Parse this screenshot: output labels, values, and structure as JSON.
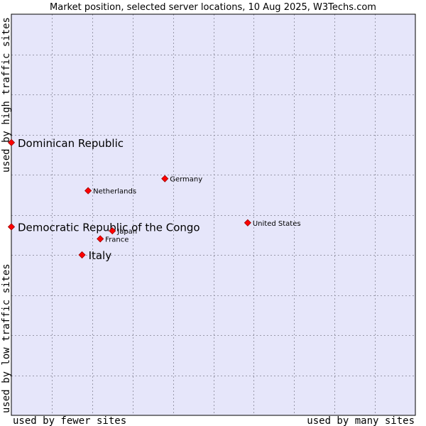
{
  "chart_data": {
    "type": "scatter",
    "title": "Market position, selected server locations, 10 Aug 2025, W3Techs.com",
    "xlabel_left": "used by fewer sites",
    "xlabel_right": "used by many sites",
    "ylabel_bottom": "used by low traffic sites",
    "ylabel_top": "used by high traffic sites",
    "xlim": [
      0,
      10
    ],
    "ylim": [
      0,
      10
    ],
    "grid": true,
    "colors": {
      "plot_bg": "#e6e6fa",
      "grid": "#9999aa",
      "marker": "#ff0000",
      "marker_edge": "#990000",
      "border": "#000000"
    },
    "points": [
      {
        "label": "Dominican Republic",
        "x": 0.0,
        "y": 6.8,
        "size": "large"
      },
      {
        "label": "Democratic Republic of the Congo",
        "x": 0.0,
        "y": 4.7,
        "size": "large"
      },
      {
        "label": "Italy",
        "x": 1.75,
        "y": 4.0,
        "size": "large"
      },
      {
        "label": "Netherlands",
        "x": 1.9,
        "y": 5.6,
        "size": "small"
      },
      {
        "label": "Germany",
        "x": 3.8,
        "y": 5.9,
        "size": "small"
      },
      {
        "label": "Japan",
        "x": 2.5,
        "y": 4.6,
        "size": "small"
      },
      {
        "label": "France",
        "x": 2.2,
        "y": 4.4,
        "size": "small"
      },
      {
        "label": "United States",
        "x": 5.85,
        "y": 4.8,
        "size": "small"
      }
    ]
  }
}
